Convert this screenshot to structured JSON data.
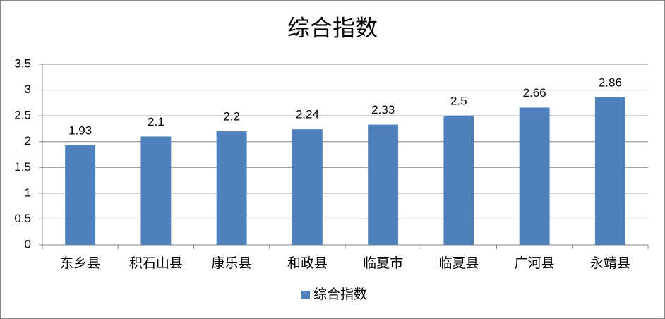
{
  "chart_data": {
    "type": "bar",
    "title": "综合指数",
    "categories": [
      "东乡县",
      "积石山县",
      "康乐县",
      "和政县",
      "临夏市",
      "临夏县",
      "广河县",
      "永靖县"
    ],
    "series": [
      {
        "name": "综合指数",
        "color": "#4f81bd",
        "values": [
          1.93,
          2.1,
          2.2,
          2.24,
          2.33,
          2.5,
          2.66,
          2.86
        ]
      }
    ],
    "ylim": [
      0,
      3.5
    ],
    "yticks": [
      0,
      0.5,
      1,
      1.5,
      2,
      2.5,
      3,
      3.5
    ],
    "grid": true,
    "legend": "bottom"
  }
}
